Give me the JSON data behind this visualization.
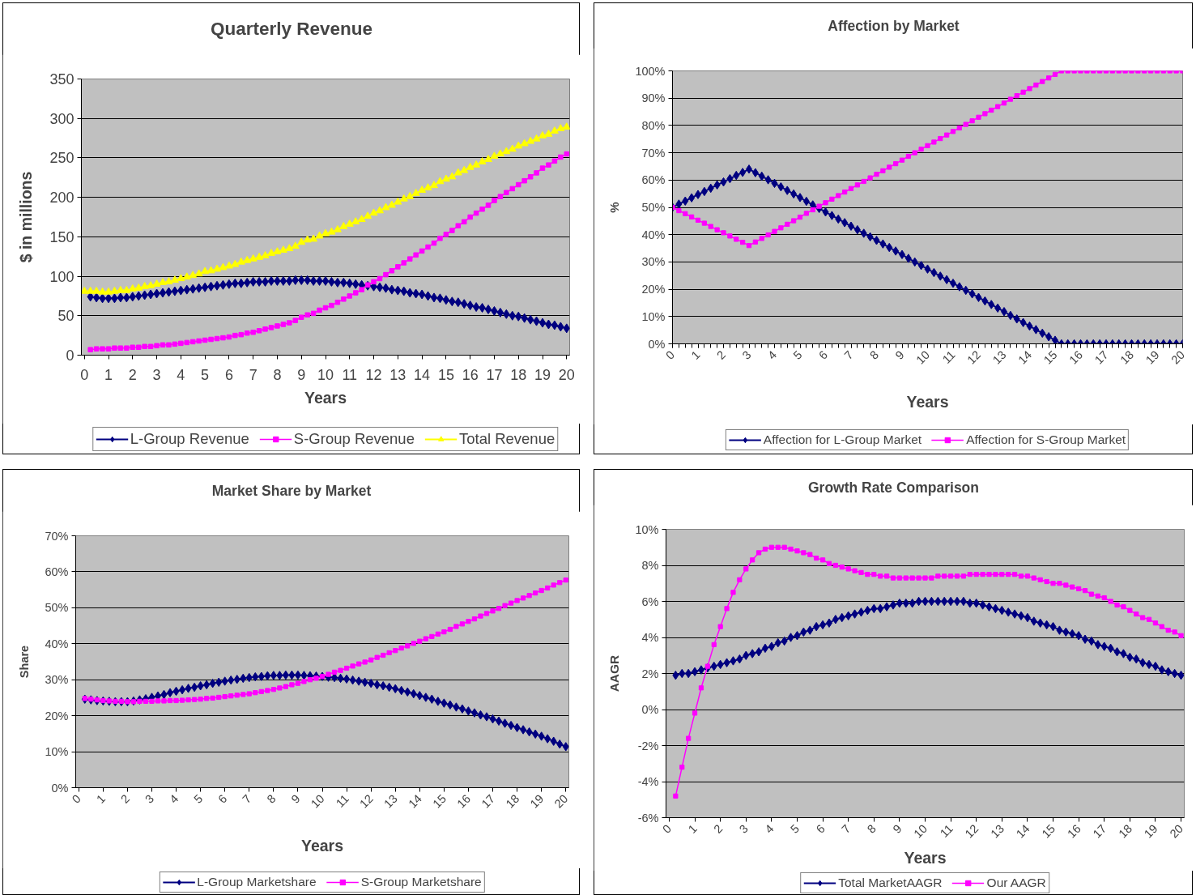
{
  "chart_data": [
    {
      "type": "line",
      "title": "Quarterly Revenue",
      "xlabel": "Years",
      "ylabel": "$ in millions",
      "grid": "y",
      "legend": "bottom",
      "x": [
        0,
        0.25,
        0.5,
        0.75,
        1,
        1.25,
        1.5,
        1.75,
        2,
        2.25,
        2.5,
        2.75,
        3,
        3.25,
        3.5,
        3.75,
        4,
        4.25,
        4.5,
        4.75,
        5,
        5.25,
        5.5,
        5.75,
        6,
        6.25,
        6.5,
        6.75,
        7,
        7.25,
        7.5,
        7.75,
        8,
        8.25,
        8.5,
        8.75,
        9,
        9.25,
        9.5,
        9.75,
        10,
        10.25,
        10.5,
        10.75,
        11,
        11.25,
        11.5,
        11.75,
        12,
        12.25,
        12.5,
        12.75,
        13,
        13.25,
        13.5,
        13.75,
        14,
        14.25,
        14.5,
        14.75,
        15,
        15.25,
        15.5,
        15.75,
        16,
        16.25,
        16.5,
        16.75,
        17,
        17.25,
        17.5,
        17.75,
        18,
        18.25,
        18.5,
        18.75,
        19,
        19.25,
        19.5,
        19.75,
        20
      ],
      "xlim": [
        -0.125,
        20.125
      ],
      "xticks": [
        0,
        1,
        2,
        3,
        4,
        5,
        6,
        7,
        8,
        9,
        10,
        11,
        12,
        13,
        14,
        15,
        16,
        17,
        18,
        19,
        20
      ],
      "ylim": [
        0,
        350
      ],
      "yticks": [
        0,
        50,
        100,
        150,
        200,
        250,
        300,
        350
      ],
      "series": [
        {
          "name": "L-Group Revenue",
          "color": "#000080",
          "marker": "diamond",
          "values": [
            null,
            74,
            73,
            72,
            72,
            72,
            73,
            73,
            74,
            75,
            76,
            77,
            78,
            79,
            80,
            81,
            82,
            83,
            84,
            85,
            86,
            87,
            88,
            89,
            90,
            91,
            91,
            92,
            93,
            93,
            93,
            94,
            94,
            94,
            94,
            95,
            95,
            95,
            94,
            94,
            94,
            93,
            92,
            92,
            91,
            90,
            89,
            88,
            87,
            86,
            85,
            83,
            82,
            81,
            79,
            78,
            77,
            75,
            73,
            72,
            70,
            68,
            67,
            65,
            63,
            61,
            60,
            58,
            56,
            54,
            52,
            50,
            49,
            47,
            45,
            43,
            41,
            39,
            38,
            36,
            34
          ]
        },
        {
          "name": "S-Group Revenue",
          "color": "#FF00FF",
          "marker": "square",
          "values": [
            null,
            7,
            8,
            8,
            8,
            9,
            9,
            9,
            10,
            10,
            11,
            11,
            12,
            13,
            13,
            14,
            15,
            16,
            17,
            18,
            19,
            20,
            21,
            22,
            23,
            25,
            26,
            28,
            29,
            31,
            33,
            35,
            37,
            39,
            41,
            44,
            48,
            51,
            53,
            57,
            60,
            63,
            67,
            71,
            75,
            79,
            83,
            89,
            93,
            97,
            102,
            107,
            112,
            117,
            122,
            127,
            132,
            137,
            142,
            148,
            153,
            158,
            164,
            169,
            175,
            180,
            185,
            190,
            196,
            201,
            206,
            211,
            216,
            221,
            226,
            231,
            237,
            241,
            246,
            251,
            255
          ]
        },
        {
          "name": "Total Revenue",
          "color": "#FFFF00",
          "marker": "triangle",
          "values": [
            81,
            81,
            81,
            80,
            80,
            81,
            82,
            82,
            84,
            85,
            87,
            88,
            90,
            92,
            93,
            95,
            97,
            99,
            101,
            103,
            106,
            107,
            109,
            111,
            113,
            115,
            118,
            120,
            122,
            124,
            126,
            129,
            131,
            133,
            135,
            138,
            143,
            146,
            147,
            151,
            154,
            156,
            159,
            163,
            166,
            169,
            172,
            176,
            180,
            183,
            187,
            190,
            194,
            198,
            201,
            205,
            209,
            212,
            215,
            220,
            223,
            226,
            231,
            234,
            238,
            241,
            245,
            248,
            252,
            255,
            258,
            261,
            265,
            268,
            271,
            274,
            278,
            280,
            284,
            287,
            289
          ]
        }
      ]
    },
    {
      "type": "line",
      "title": "Affection by Market",
      "xlabel": "Years",
      "ylabel": "%",
      "grid": "y",
      "legend": "bottom",
      "x": [
        0,
        0.25,
        0.5,
        0.75,
        1,
        1.25,
        1.5,
        1.75,
        2,
        2.25,
        2.5,
        2.75,
        3,
        3.25,
        3.5,
        3.75,
        4,
        4.25,
        4.5,
        4.75,
        5,
        5.25,
        5.5,
        5.75,
        6,
        6.25,
        6.5,
        6.75,
        7,
        7.25,
        7.5,
        7.75,
        8,
        8.25,
        8.5,
        8.75,
        9,
        9.25,
        9.5,
        9.75,
        10,
        10.25,
        10.5,
        10.75,
        11,
        11.25,
        11.5,
        11.75,
        12,
        12.25,
        12.5,
        12.75,
        13,
        13.25,
        13.5,
        13.75,
        14,
        14.25,
        14.5,
        14.75,
        15,
        15.25,
        15.5,
        15.75,
        16,
        16.25,
        16.5,
        16.75,
        17,
        17.25,
        17.5,
        17.75,
        18,
        18.25,
        18.5,
        18.75,
        19,
        19.25,
        19.5,
        19.75,
        20
      ],
      "xlim": [
        0,
        20
      ],
      "xticks": [
        0,
        1,
        2,
        3,
        4,
        5,
        6,
        7,
        8,
        9,
        10,
        11,
        12,
        13,
        14,
        15,
        16,
        17,
        18,
        19,
        20
      ],
      "ylim": [
        0,
        100
      ],
      "yticks": [
        {
          "value": 0,
          "label": "0%"
        },
        {
          "value": 10,
          "label": "10%"
        },
        {
          "value": 20,
          "label": "20%"
        },
        {
          "value": 30,
          "label": "30%"
        },
        {
          "value": 40,
          "label": "40%"
        },
        {
          "value": 50,
          "label": "50%"
        },
        {
          "value": 60,
          "label": "60%"
        },
        {
          "value": 70,
          "label": "70%"
        },
        {
          "value": 80,
          "label": "80%"
        },
        {
          "value": 90,
          "label": "90%"
        },
        {
          "value": 100,
          "label": "100%"
        }
      ],
      "series": [
        {
          "name": "Affection for L-Group Market",
          "color": "#000080",
          "marker": "diamond",
          "values": [
            50,
            51.2,
            52.3,
            53.5,
            54.7,
            55.8,
            57,
            58.2,
            59.3,
            60.5,
            61.7,
            62.8,
            64,
            62.7,
            61.4,
            60.1,
            58.8,
            57.5,
            56.2,
            54.9,
            53.6,
            52.2,
            50.9,
            49.6,
            48.3,
            47,
            45.7,
            44.4,
            43.1,
            41.8,
            40.5,
            39.2,
            37.9,
            36.6,
            35.3,
            34,
            32.7,
            31.3,
            30,
            28.7,
            27.4,
            26.1,
            24.8,
            23.5,
            22.2,
            20.9,
            19.6,
            18.3,
            17,
            15.7,
            14.4,
            13.1,
            11.8,
            10.4,
            9.1,
            7.8,
            6.5,
            5.2,
            3.9,
            2.6,
            1.3,
            0,
            0,
            0,
            0,
            0,
            0,
            0,
            0,
            0,
            0,
            0,
            0,
            0,
            0,
            0,
            0,
            0,
            0,
            0,
            0
          ]
        },
        {
          "name": "Affection for S-Group Market",
          "color": "#FF00FF",
          "marker": "square",
          "values": [
            50,
            48.8,
            47.7,
            46.5,
            45.3,
            44.2,
            43,
            41.8,
            40.7,
            39.5,
            38.3,
            37.2,
            36,
            37.3,
            38.6,
            39.9,
            41.2,
            42.5,
            43.8,
            45.1,
            46.4,
            47.8,
            49.1,
            50.4,
            51.7,
            53,
            54.3,
            55.6,
            56.9,
            58.2,
            59.5,
            60.8,
            62.1,
            63.4,
            64.7,
            66,
            67.3,
            68.7,
            70,
            71.3,
            72.6,
            73.9,
            75.2,
            76.5,
            77.8,
            79.1,
            80.4,
            81.7,
            83,
            84.3,
            85.6,
            86.9,
            88.2,
            89.6,
            90.9,
            92.2,
            93.5,
            94.8,
            96.1,
            97.4,
            98.7,
            100,
            100,
            100,
            100,
            100,
            100,
            100,
            100,
            100,
            100,
            100,
            100,
            100,
            100,
            100,
            100,
            100,
            100,
            100,
            100
          ]
        }
      ]
    },
    {
      "type": "line",
      "title": "Market Share by Market",
      "xlabel": "Years",
      "ylabel": "Share",
      "grid": "y",
      "legend": "bottom",
      "x": [
        0.25,
        0.5,
        0.75,
        1,
        1.25,
        1.5,
        1.75,
        2,
        2.25,
        2.5,
        2.75,
        3,
        3.25,
        3.5,
        3.75,
        4,
        4.25,
        4.5,
        4.75,
        5,
        5.25,
        5.5,
        5.75,
        6,
        6.25,
        6.5,
        6.75,
        7,
        7.25,
        7.5,
        7.75,
        8,
        8.25,
        8.5,
        8.75,
        9,
        9.25,
        9.5,
        9.75,
        10,
        10.25,
        10.5,
        10.75,
        11,
        11.25,
        11.5,
        11.75,
        12,
        12.25,
        12.5,
        12.75,
        13,
        13.25,
        13.5,
        13.75,
        14,
        14.25,
        14.5,
        14.75,
        15,
        15.25,
        15.5,
        15.75,
        16,
        16.25,
        16.5,
        16.75,
        17,
        17.25,
        17.5,
        17.75,
        18,
        18.25,
        18.5,
        18.75,
        19,
        19.25,
        19.5,
        19.75,
        20
      ],
      "xlim": [
        -0.125,
        20.125
      ],
      "xticks": [
        0,
        1,
        2,
        3,
        4,
        5,
        6,
        7,
        8,
        9,
        10,
        11,
        12,
        13,
        14,
        15,
        16,
        17,
        18,
        19,
        20
      ],
      "ylim": [
        0,
        70
      ],
      "yticks": [
        {
          "value": 0,
          "label": "0%"
        },
        {
          "value": 10,
          "label": "10%"
        },
        {
          "value": 20,
          "label": "20%"
        },
        {
          "value": 30,
          "label": "30%"
        },
        {
          "value": 40,
          "label": "40%"
        },
        {
          "value": 50,
          "label": "50%"
        },
        {
          "value": 60,
          "label": "60%"
        },
        {
          "value": 70,
          "label": "70%"
        }
      ],
      "series": [
        {
          "name": "L-Group Marketshare",
          "color": "#000080",
          "marker": "diamond",
          "values": [
            24.6,
            24.4,
            24.2,
            24.1,
            24.0,
            23.9,
            23.9,
            23.9,
            24.1,
            24.4,
            24.7,
            25.1,
            25.5,
            25.9,
            26.4,
            26.8,
            27.2,
            27.6,
            27.9,
            28.3,
            28.6,
            29.0,
            29.3,
            29.6,
            29.9,
            30.1,
            30.4,
            30.6,
            30.8,
            30.9,
            31.1,
            31.2,
            31.2,
            31.3,
            31.3,
            31.3,
            31.2,
            31.1,
            31.0,
            30.9,
            30.7,
            30.6,
            30.4,
            30.2,
            29.9,
            29.6,
            29.3,
            29.0,
            28.6,
            28.3,
            27.9,
            27.5,
            27.0,
            26.6,
            26.1,
            25.6,
            25.1,
            24.6,
            24.0,
            23.5,
            23.0,
            22.4,
            21.9,
            21.3,
            20.8,
            20.2,
            19.7,
            19.1,
            18.5,
            17.9,
            17.3,
            16.7,
            16.1,
            15.5,
            14.9,
            14.3,
            13.6,
            12.9,
            12.1,
            11.4
          ]
        },
        {
          "name": "S-Group Marketshare",
          "color": "#FF00FF",
          "marker": "square",
          "values": [
            24.8,
            24.6,
            24.4,
            24.2,
            24.1,
            24.0,
            24.0,
            23.9,
            23.9,
            24.0,
            24.0,
            24.0,
            24.1,
            24.1,
            24.2,
            24.2,
            24.3,
            24.4,
            24.5,
            24.6,
            24.8,
            24.9,
            25.1,
            25.3,
            25.5,
            25.7,
            25.9,
            26.1,
            26.4,
            26.7,
            27.0,
            27.3,
            27.7,
            28.1,
            28.6,
            29.0,
            29.5,
            30.0,
            30.4,
            30.9,
            31.5,
            32.1,
            32.6,
            33.2,
            33.8,
            34.4,
            34.9,
            35.5,
            36.2,
            36.8,
            37.5,
            38.1,
            38.8,
            39.4,
            40.1,
            40.7,
            41.4,
            42.0,
            42.7,
            43.3,
            44.0,
            44.8,
            45.5,
            46.2,
            46.9,
            47.7,
            48.4,
            49.1,
            49.8,
            50.6,
            51.3,
            52.0,
            52.7,
            53.4,
            54.1,
            54.8,
            55.5,
            56.3,
            57.0,
            57.7
          ]
        }
      ]
    },
    {
      "type": "line",
      "title": "Growth Rate Comparison",
      "xlabel": "Years",
      "ylabel": "AAGR",
      "grid": "y",
      "legend": "bottom",
      "x": [
        0.25,
        0.5,
        0.75,
        1,
        1.25,
        1.5,
        1.75,
        2,
        2.25,
        2.5,
        2.75,
        3,
        3.25,
        3.5,
        3.75,
        4,
        4.25,
        4.5,
        4.75,
        5,
        5.25,
        5.5,
        5.75,
        6,
        6.25,
        6.5,
        6.75,
        7,
        7.25,
        7.5,
        7.75,
        8,
        8.25,
        8.5,
        8.75,
        9,
        9.25,
        9.5,
        9.75,
        10,
        10.25,
        10.5,
        10.75,
        11,
        11.25,
        11.5,
        11.75,
        12,
        12.25,
        12.5,
        12.75,
        13,
        13.25,
        13.5,
        13.75,
        14,
        14.25,
        14.5,
        14.75,
        15,
        15.25,
        15.5,
        15.75,
        16,
        16.25,
        16.5,
        16.75,
        17,
        17.25,
        17.5,
        17.75,
        18,
        18.25,
        18.5,
        18.75,
        19,
        19.25,
        19.5,
        19.75,
        20
      ],
      "xlim": [
        -0.125,
        20.125
      ],
      "xticks": [
        0,
        1,
        2,
        3,
        4,
        5,
        6,
        7,
        8,
        9,
        10,
        11,
        12,
        13,
        14,
        15,
        16,
        17,
        18,
        19,
        20
      ],
      "ylim": [
        -6,
        10
      ],
      "yticks": [
        {
          "value": -6,
          "label": "-6%"
        },
        {
          "value": -4,
          "label": "-4%"
        },
        {
          "value": -2,
          "label": "-2%"
        },
        {
          "value": 0,
          "label": "0%"
        },
        {
          "value": 2,
          "label": "2%"
        },
        {
          "value": 4,
          "label": "4%"
        },
        {
          "value": 6,
          "label": "6%"
        },
        {
          "value": 8,
          "label": "8%"
        },
        {
          "value": 10,
          "label": "10%"
        }
      ],
      "series": [
        {
          "name": "Total MarketAAGR",
          "color": "#000080",
          "marker": "diamond",
          "values": [
            1.9,
            2.0,
            2.0,
            2.1,
            2.2,
            2.3,
            2.4,
            2.5,
            2.6,
            2.7,
            2.8,
            3.0,
            3.1,
            3.2,
            3.4,
            3.5,
            3.7,
            3.8,
            4.0,
            4.1,
            4.3,
            4.4,
            4.6,
            4.7,
            4.8,
            5.0,
            5.1,
            5.2,
            5.3,
            5.4,
            5.5,
            5.6,
            5.6,
            5.7,
            5.8,
            5.9,
            5.9,
            5.9,
            6.0,
            6.0,
            6.0,
            6.0,
            6.0,
            6.0,
            6.0,
            6.0,
            5.9,
            5.9,
            5.8,
            5.7,
            5.6,
            5.5,
            5.4,
            5.3,
            5.2,
            5.1,
            4.9,
            4.8,
            4.7,
            4.6,
            4.4,
            4.3,
            4.2,
            4.1,
            3.9,
            3.8,
            3.6,
            3.5,
            3.4,
            3.2,
            3.1,
            2.9,
            2.8,
            2.6,
            2.5,
            2.4,
            2.2,
            2.1,
            2.0,
            1.9
          ]
        },
        {
          "name": "Our AAGR",
          "color": "#FF00FF",
          "marker": "square",
          "values": [
            -4.8,
            -3.2,
            -1.6,
            -0.2,
            1.2,
            2.4,
            3.6,
            4.6,
            5.6,
            6.5,
            7.2,
            7.8,
            8.3,
            8.7,
            8.9,
            9.0,
            9.0,
            9.0,
            8.9,
            8.8,
            8.7,
            8.6,
            8.4,
            8.3,
            8.1,
            8.0,
            7.9,
            7.8,
            7.7,
            7.6,
            7.5,
            7.5,
            7.4,
            7.4,
            7.3,
            7.3,
            7.3,
            7.3,
            7.3,
            7.3,
            7.3,
            7.4,
            7.4,
            7.4,
            7.4,
            7.4,
            7.5,
            7.5,
            7.5,
            7.5,
            7.5,
            7.5,
            7.5,
            7.5,
            7.4,
            7.4,
            7.3,
            7.2,
            7.1,
            7.0,
            7.0,
            6.9,
            6.8,
            6.7,
            6.6,
            6.4,
            6.3,
            6.2,
            6.0,
            5.8,
            5.7,
            5.5,
            5.3,
            5.1,
            5.0,
            4.8,
            4.6,
            4.4,
            4.3,
            4.1
          ]
        }
      ]
    }
  ]
}
